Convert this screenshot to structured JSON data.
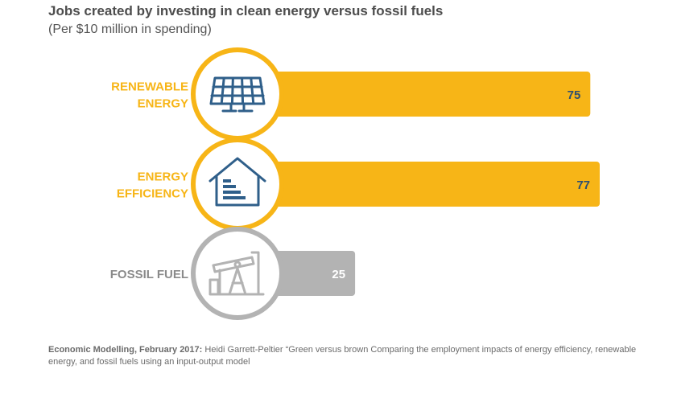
{
  "title": "Jobs created by investing in clean energy versus fossil fuels",
  "subtitle": "(Per $10 million in spending)",
  "source": {
    "label": "Economic Modelling, February 2017:",
    "text": " Heidi Garrett-Peltier “Green versus brown Comparing the employment impacts of energy efficiency, renewable energy, and fossil fuels using an input-output model"
  },
  "colors": {
    "clean": "#f7b517",
    "fossil": "#b3b3b3",
    "icon_clean": "#2f5f8a",
    "icon_fossil": "#b3b3b3",
    "label_clean": "#f7b517",
    "label_fossil": "#8a8a8a"
  },
  "chart_data": {
    "type": "bar",
    "orientation": "horizontal",
    "title": "Jobs created by investing in clean energy versus fossil fuels",
    "subtitle": "(Per $10 million in spending)",
    "categories": [
      "RENEWABLE ENERGY",
      "ENERGY EFFICIENCY",
      "FOSSIL FUEL"
    ],
    "label_lines": [
      [
        "RENEWABLE",
        "ENERGY"
      ],
      [
        "ENERGY",
        "EFFICIENCY"
      ],
      [
        "FOSSIL FUEL"
      ]
    ],
    "values": [
      75,
      77,
      25
    ],
    "icons": [
      "solar-panel-icon",
      "house-efficiency-icon",
      "oil-pumpjack-icon"
    ],
    "xlim": [
      0,
      77
    ],
    "grid": false,
    "legend": "none"
  }
}
